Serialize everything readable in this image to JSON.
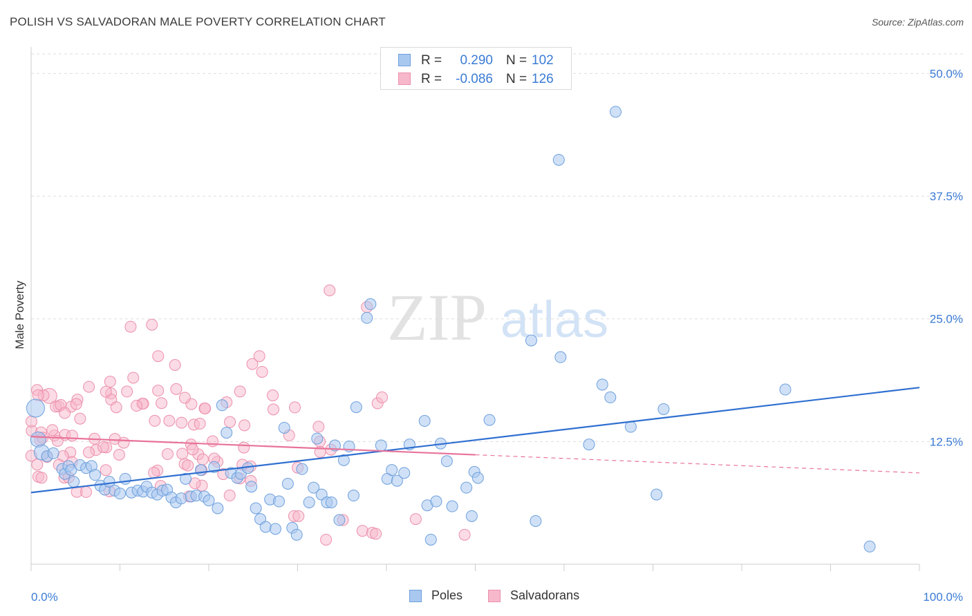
{
  "title": "POLISH VS SALVADORAN MALE POVERTY CORRELATION CHART",
  "source": "Source: ZipAtlas.com",
  "watermark": "ZIPatlas",
  "legend": {
    "rows": [
      {
        "r_label": "R =",
        "r_value": "0.290",
        "n_label": "N =",
        "n_value": "102"
      },
      {
        "r_label": "R =",
        "r_value": "-0.086",
        "n_label": "N =",
        "n_value": "126"
      }
    ]
  },
  "bottom_legend": {
    "series1": "Poles",
    "series2": "Salvadorans"
  },
  "colors": {
    "poles_fill": "#a9c8f0",
    "poles_stroke": "#6d9fdc",
    "poles_line": "#2f6fd0",
    "salv_fill": "#f7b8cb",
    "salv_stroke": "#ec8fac",
    "salv_line": "#e8739a",
    "tick_label": "#3a7bd5",
    "grid": "#dddddd"
  },
  "chart_data": {
    "type": "scatter",
    "title": "POLISH VS SALVADORAN MALE POVERTY CORRELATION CHART",
    "xlabel": "",
    "ylabel": "Male Poverty",
    "xlim": [
      0,
      100
    ],
    "ylim": [
      0,
      52
    ],
    "x_tick_labels": [
      "0.0%",
      "100.0%"
    ],
    "y_ticks": [
      12.5,
      25.0,
      37.5,
      50.0
    ],
    "y_tick_labels": [
      "12.5%",
      "25.0%",
      "37.5%",
      "50.0%"
    ],
    "grid": true,
    "legend_position": "top-center",
    "series": [
      {
        "name": "Poles",
        "r": 0.29,
        "n": 102,
        "trend": {
          "x": [
            0,
            100
          ],
          "y": [
            7.3,
            18.0
          ],
          "solid_until": 100
        },
        "points": [
          [
            0.5,
            15.9,
            3
          ],
          [
            0.8,
            12.7,
            2
          ],
          [
            1.2,
            11.4,
            2
          ],
          [
            1.8,
            11.0,
            1
          ],
          [
            2.5,
            11.3,
            1
          ],
          [
            3.5,
            9.7,
            1
          ],
          [
            3.8,
            9.2,
            1
          ],
          [
            4.2,
            10.0,
            1
          ],
          [
            4.5,
            9.6,
            1
          ],
          [
            4.8,
            8.4,
            1
          ],
          [
            5.5,
            10.1,
            1
          ],
          [
            6.2,
            9.8,
            1
          ],
          [
            6.8,
            10.0,
            1
          ],
          [
            7.2,
            9.1,
            1
          ],
          [
            7.8,
            8.0,
            1
          ],
          [
            8.3,
            7.6,
            1
          ],
          [
            8.8,
            8.4,
            1
          ],
          [
            9.4,
            7.5,
            1
          ],
          [
            10.0,
            7.2,
            1
          ],
          [
            10.6,
            8.7,
            1
          ],
          [
            11.3,
            7.3,
            1
          ],
          [
            12.0,
            7.5,
            1
          ],
          [
            12.6,
            7.4,
            1
          ],
          [
            13.0,
            7.9,
            1
          ],
          [
            13.6,
            7.3,
            1
          ],
          [
            14.2,
            7.1,
            1
          ],
          [
            14.8,
            7.5,
            1
          ],
          [
            15.3,
            7.6,
            1
          ],
          [
            15.8,
            6.8,
            1
          ],
          [
            16.3,
            6.3,
            1
          ],
          [
            16.9,
            6.7,
            1
          ],
          [
            17.4,
            8.7,
            1
          ],
          [
            18.0,
            6.9,
            1
          ],
          [
            18.6,
            7.0,
            1
          ],
          [
            19.1,
            9.6,
            1
          ],
          [
            19.5,
            6.9,
            1
          ],
          [
            20.0,
            6.5,
            1
          ],
          [
            20.6,
            9.9,
            1
          ],
          [
            21.0,
            5.7,
            1
          ],
          [
            21.5,
            16.2,
            1
          ],
          [
            22.0,
            13.4,
            1
          ],
          [
            22.5,
            9.3,
            1
          ],
          [
            23.2,
            8.8,
            1
          ],
          [
            23.6,
            9.2,
            1
          ],
          [
            24.4,
            9.8,
            1
          ],
          [
            24.8,
            7.9,
            1
          ],
          [
            25.3,
            5.7,
            1
          ],
          [
            25.8,
            4.6,
            1
          ],
          [
            26.4,
            3.8,
            1
          ],
          [
            26.9,
            6.6,
            1
          ],
          [
            27.5,
            3.6,
            1
          ],
          [
            27.9,
            6.4,
            1
          ],
          [
            28.5,
            13.9,
            1
          ],
          [
            28.9,
            8.2,
            1
          ],
          [
            29.4,
            3.7,
            1
          ],
          [
            29.9,
            3.0,
            1
          ],
          [
            30.5,
            9.7,
            1
          ],
          [
            31.3,
            6.3,
            1
          ],
          [
            31.8,
            7.8,
            1
          ],
          [
            32.2,
            12.8,
            1
          ],
          [
            32.7,
            7.1,
            1
          ],
          [
            33.3,
            6.3,
            1
          ],
          [
            33.8,
            6.3,
            1
          ],
          [
            34.2,
            12.1,
            1
          ],
          [
            34.7,
            4.5,
            1
          ],
          [
            35.2,
            10.6,
            1
          ],
          [
            35.8,
            12.0,
            1
          ],
          [
            36.3,
            7.0,
            1
          ],
          [
            36.6,
            16.0,
            1
          ],
          [
            37.8,
            25.1,
            1
          ],
          [
            38.2,
            26.5,
            1
          ],
          [
            39.4,
            12.1,
            1
          ],
          [
            40.1,
            8.7,
            1
          ],
          [
            40.6,
            9.6,
            1
          ],
          [
            41.2,
            8.5,
            1
          ],
          [
            42.0,
            9.3,
            1
          ],
          [
            42.6,
            12.2,
            1
          ],
          [
            44.3,
            14.6,
            1
          ],
          [
            44.6,
            6.0,
            1
          ],
          [
            45.0,
            2.5,
            1
          ],
          [
            45.6,
            6.4,
            1
          ],
          [
            46.1,
            12.3,
            1
          ],
          [
            46.8,
            10.5,
            1
          ],
          [
            47.4,
            5.9,
            1
          ],
          [
            49.0,
            7.8,
            1
          ],
          [
            49.6,
            4.9,
            1
          ],
          [
            49.9,
            9.4,
            1
          ],
          [
            50.3,
            8.8,
            1
          ],
          [
            51.6,
            14.7,
            1
          ],
          [
            56.3,
            22.8,
            1
          ],
          [
            56.8,
            4.4,
            1
          ],
          [
            59.4,
            41.2,
            1
          ],
          [
            59.6,
            21.1,
            1
          ],
          [
            62.8,
            12.2,
            1
          ],
          [
            64.3,
            18.3,
            1
          ],
          [
            65.2,
            17.0,
            1
          ],
          [
            65.8,
            46.1,
            1
          ],
          [
            67.5,
            14.0,
            1
          ],
          [
            70.4,
            7.1,
            1
          ],
          [
            71.2,
            15.8,
            1
          ],
          [
            84.9,
            17.8,
            1
          ],
          [
            94.4,
            1.8,
            1
          ]
        ]
      },
      {
        "name": "Salvadorans",
        "r": -0.086,
        "n": 126,
        "trend": {
          "x": [
            0,
            100
          ],
          "y": [
            13.0,
            9.3
          ],
          "solid_until": 50
        }
      }
    ]
  }
}
